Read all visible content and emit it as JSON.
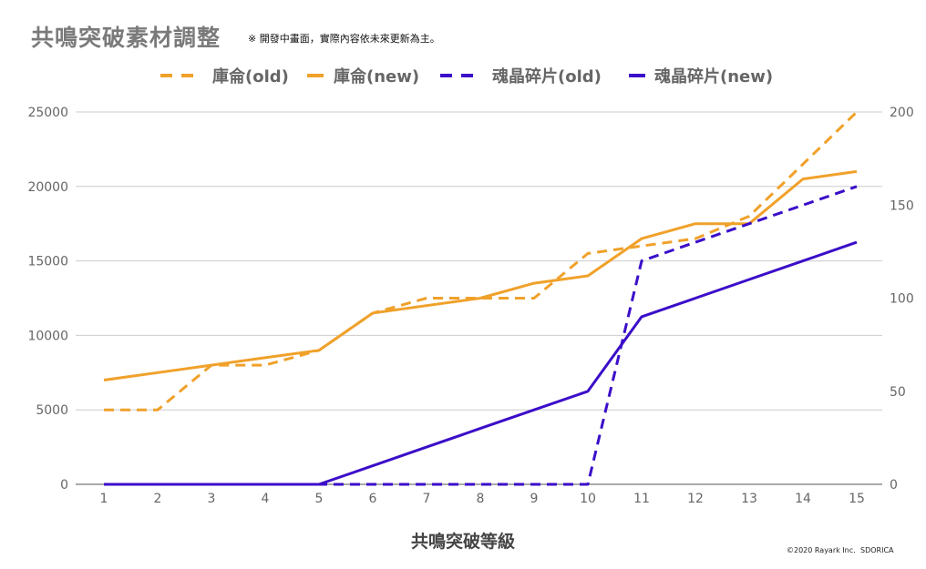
{
  "header": {
    "title": "共鳴突破素材調整",
    "subtitle": "※ 開發中畫面，實際內容依未來更新為主。"
  },
  "footer": {
    "credit": "©2020 Rayark Inc.",
    "brand": "SDORICA"
  },
  "chart_data": {
    "type": "line",
    "xlabel": "共鳴突破等級",
    "x": [
      1,
      2,
      3,
      4,
      5,
      6,
      7,
      8,
      9,
      10,
      11,
      12,
      13,
      14,
      15
    ],
    "y_left": {
      "min": 0,
      "max": 25000,
      "ticks": [
        0,
        5000,
        10000,
        15000,
        20000,
        25000
      ]
    },
    "y_right": {
      "min": 0,
      "max": 200,
      "ticks": [
        0,
        50,
        100,
        150,
        200
      ]
    },
    "grid": true,
    "legend_position": "top",
    "series": [
      {
        "name": "庫侖(old)",
        "axis": "left",
        "style": "dashed",
        "color": "#f0a12a",
        "values": [
          5000,
          5000,
          8000,
          8000,
          9000,
          11500,
          12500,
          12500,
          12500,
          15500,
          16000,
          16500,
          18000,
          21500,
          25000
        ]
      },
      {
        "name": "庫侖(new)",
        "axis": "left",
        "style": "solid",
        "color": "#f0a12a",
        "values": [
          7000,
          7500,
          8000,
          8500,
          9000,
          11500,
          12000,
          12500,
          13500,
          14000,
          16500,
          17500,
          17500,
          20500,
          21000
        ]
      },
      {
        "name": "魂晶碎片(old)",
        "axis": "right",
        "style": "dashed",
        "color": "#3b0ec9",
        "values": [
          0,
          0,
          0,
          0,
          0,
          0,
          0,
          0,
          0,
          0,
          120,
          130,
          140,
          150,
          160
        ]
      },
      {
        "name": "魂晶碎片(new)",
        "axis": "right",
        "style": "solid",
        "color": "#3b0ec9",
        "values": [
          0,
          0,
          0,
          0,
          0,
          10,
          20,
          30,
          40,
          50,
          90,
          100,
          110,
          120,
          130
        ]
      }
    ]
  }
}
